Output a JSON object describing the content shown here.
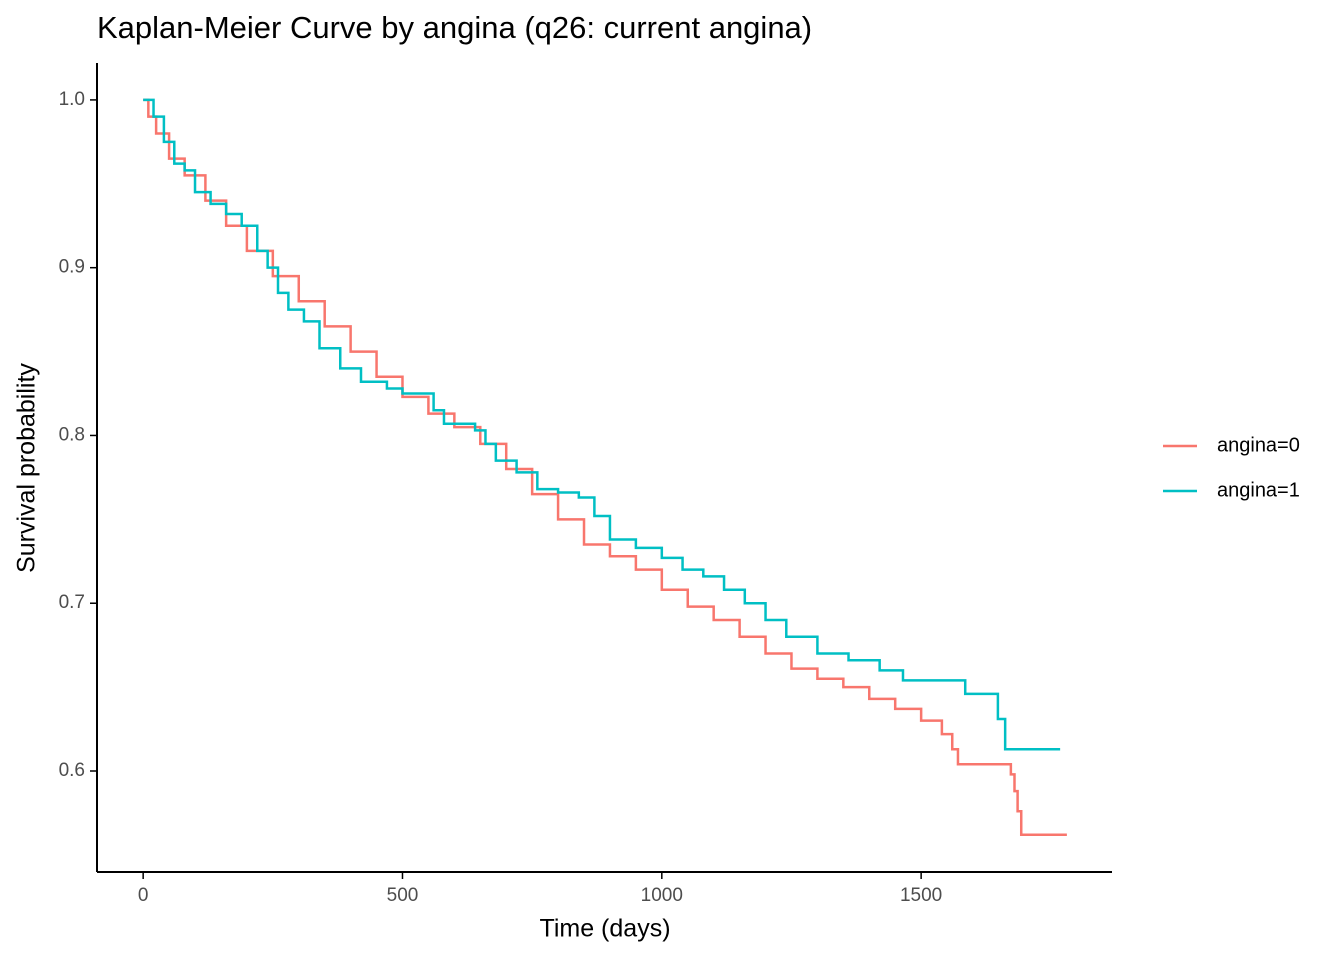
{
  "chart_data": {
    "type": "step",
    "title": "Kaplan-Meier Curve by angina (q26: current angina)",
    "xlabel": "Time (days)",
    "ylabel": "Survival probability",
    "xlim": [
      -89,
      1868
    ],
    "ylim": [
      0.5398,
      1.022
    ],
    "xticks": [
      0,
      500,
      1000,
      1500
    ],
    "yticks": [
      {
        "value": 0.6,
        "label": "0.6"
      },
      {
        "value": 0.7,
        "label": "0.7"
      },
      {
        "value": 0.8,
        "label": "0.8"
      },
      {
        "value": 0.9,
        "label": "0.9"
      },
      {
        "value": 1.0,
        "label": "1.0"
      }
    ],
    "legend": "right",
    "series": [
      {
        "name": "angina=0",
        "color": "#f8766d",
        "x": [
          0,
          10,
          25,
          50,
          80,
          120,
          160,
          200,
          250,
          300,
          350,
          400,
          450,
          500,
          550,
          600,
          650,
          700,
          750,
          800,
          850,
          900,
          950,
          1000,
          1050,
          1100,
          1150,
          1200,
          1250,
          1300,
          1350,
          1400,
          1450,
          1500,
          1540,
          1560,
          1571,
          1673,
          1680,
          1686,
          1693,
          1781
        ],
        "values": [
          1.0,
          0.99,
          0.98,
          0.965,
          0.955,
          0.94,
          0.925,
          0.91,
          0.895,
          0.88,
          0.865,
          0.85,
          0.835,
          0.823,
          0.813,
          0.805,
          0.795,
          0.78,
          0.765,
          0.75,
          0.735,
          0.728,
          0.72,
          0.708,
          0.698,
          0.69,
          0.68,
          0.67,
          0.661,
          0.655,
          0.65,
          0.643,
          0.637,
          0.63,
          0.622,
          0.613,
          0.604,
          0.598,
          0.588,
          0.576,
          0.562,
          0.562
        ]
      },
      {
        "name": "angina=1",
        "color": "#00bfc4",
        "x": [
          0,
          20,
          40,
          60,
          80,
          100,
          130,
          160,
          190,
          220,
          240,
          260,
          280,
          310,
          340,
          380,
          420,
          470,
          500,
          560,
          580,
          640,
          660,
          680,
          720,
          760,
          800,
          840,
          870,
          900,
          950,
          1000,
          1040,
          1080,
          1120,
          1160,
          1200,
          1240,
          1300,
          1360,
          1420,
          1465,
          1585,
          1648,
          1662,
          1768
        ],
        "values": [
          1.0,
          0.99,
          0.975,
          0.962,
          0.958,
          0.945,
          0.938,
          0.932,
          0.925,
          0.91,
          0.9,
          0.885,
          0.875,
          0.868,
          0.852,
          0.84,
          0.832,
          0.828,
          0.825,
          0.815,
          0.807,
          0.803,
          0.795,
          0.785,
          0.778,
          0.768,
          0.766,
          0.763,
          0.752,
          0.738,
          0.733,
          0.727,
          0.72,
          0.716,
          0.708,
          0.7,
          0.69,
          0.68,
          0.67,
          0.666,
          0.66,
          0.654,
          0.646,
          0.631,
          0.613,
          0.613
        ]
      }
    ]
  }
}
